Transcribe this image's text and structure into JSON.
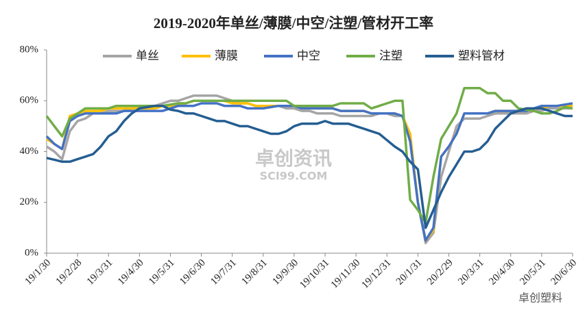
{
  "chart_data": {
    "type": "line",
    "title": "2019-2020年单丝/薄膜/中空/注塑/管材开工率",
    "annotations": [
      "卓创资讯",
      "SCI99.COM",
      "卓创塑料"
    ],
    "categories": [
      "19/1/30",
      null,
      null,
      null,
      "19/2/28",
      null,
      null,
      null,
      "19/3/31",
      null,
      null,
      null,
      "19/4/30",
      null,
      null,
      null,
      "19/5/31",
      null,
      null,
      null,
      "19/6/30",
      null,
      null,
      null,
      "19/7/31",
      null,
      null,
      null,
      "19/8/31",
      null,
      null,
      null,
      "19/9/30",
      null,
      null,
      null,
      "19/10/31",
      null,
      null,
      null,
      "19/11/30",
      null,
      null,
      null,
      "19/12/31",
      null,
      null,
      null,
      "20/1/31",
      null,
      null,
      null,
      "20/2/29",
      null,
      null,
      null,
      "20/3/31",
      null,
      null,
      null,
      "20/4/30",
      null,
      null,
      null,
      "20/5/31",
      null,
      null,
      null,
      "20/6/30"
    ],
    "series": [
      {
        "name": "单丝",
        "color": "#a5a5a5",
        "values": [
          42,
          40,
          37,
          48,
          52,
          53,
          55,
          55,
          56,
          56,
          56,
          57,
          57,
          57,
          58,
          59,
          60,
          60,
          61,
          62,
          62,
          62,
          62,
          61,
          60,
          59,
          59,
          58,
          58,
          58,
          58,
          57,
          57,
          56,
          56,
          55,
          55,
          55,
          54,
          54,
          54,
          54,
          54,
          55,
          55,
          54,
          54,
          45,
          20,
          4,
          8,
          30,
          40,
          50,
          53,
          53,
          53,
          54,
          55,
          55,
          55,
          55,
          55,
          56,
          56,
          57,
          57,
          57,
          57
        ]
      },
      {
        "name": "薄膜",
        "color": "#ffc000",
        "values": [
          45,
          43,
          41,
          54,
          55,
          56,
          56,
          56,
          57,
          57,
          57,
          57,
          57,
          57,
          57,
          58,
          58,
          59,
          59,
          60,
          60,
          60,
          60,
          60,
          59,
          59,
          59,
          58,
          58,
          58,
          58,
          58,
          58,
          57,
          57,
          57,
          57,
          57,
          56,
          56,
          56,
          56,
          55,
          55,
          55,
          55,
          54,
          47,
          20,
          5,
          9,
          38,
          42,
          47,
          55,
          55,
          55,
          55,
          56,
          56,
          56,
          56,
          56,
          57,
          57,
          58,
          58,
          58,
          58
        ]
      },
      {
        "name": "中空",
        "color": "#4472c4",
        "values": [
          46,
          43,
          41,
          52,
          54,
          55,
          55,
          55,
          55,
          55,
          56,
          56,
          56,
          56,
          56,
          56,
          57,
          58,
          58,
          58,
          59,
          59,
          59,
          58,
          58,
          58,
          57,
          57,
          57,
          57.5,
          58,
          58,
          58,
          57,
          57,
          57,
          57,
          57,
          56,
          56,
          56,
          56,
          55,
          55,
          55,
          55,
          54,
          44,
          20,
          5,
          10,
          38,
          42,
          47,
          55,
          55,
          55,
          55,
          56,
          56,
          56,
          56,
          56,
          57,
          58,
          58,
          58,
          58.5,
          59
        ]
      },
      {
        "name": "注塑",
        "color": "#70ad47",
        "values": [
          54,
          50,
          46,
          53,
          55,
          57,
          57,
          57,
          57,
          58,
          58,
          58,
          58,
          58,
          58,
          58,
          58.5,
          59,
          59,
          60,
          60,
          60,
          60,
          60,
          60,
          60,
          60,
          60,
          60,
          60,
          60,
          60,
          58,
          58,
          58,
          58,
          58,
          58,
          59,
          59,
          59,
          59,
          57,
          58,
          59,
          60,
          60,
          21,
          17,
          12,
          30,
          45,
          50,
          55,
          65,
          65,
          65,
          63,
          63,
          60,
          60,
          57,
          56.5,
          56,
          55,
          55,
          56,
          57.5,
          57
        ]
      },
      {
        "name": "塑料管材",
        "color": "#255e91",
        "values": [
          37.5,
          36.8,
          36,
          36,
          37,
          38,
          39,
          42,
          46,
          48,
          52,
          55,
          57,
          57.5,
          58,
          58,
          56.5,
          56,
          55,
          55,
          54,
          53,
          52,
          52,
          51,
          50,
          50,
          49,
          48,
          47,
          47,
          48,
          50,
          51,
          51,
          51,
          52,
          51,
          51,
          51,
          50,
          49,
          48,
          47,
          44.5,
          42,
          40,
          36,
          33,
          10,
          17,
          24,
          30,
          35,
          40,
          40,
          41,
          44,
          49,
          52,
          55,
          56,
          57,
          57,
          57,
          56,
          55,
          54,
          54
        ]
      }
    ],
    "ylim": [
      0,
      80
    ],
    "yticks": [
      {
        "value": 0,
        "label": "0%"
      },
      {
        "value": 20,
        "label": "20%"
      },
      {
        "value": 40,
        "label": "40%"
      },
      {
        "value": 60,
        "label": "60%"
      },
      {
        "value": 80,
        "label": "80%"
      }
    ],
    "grid": false,
    "legend": "top"
  }
}
